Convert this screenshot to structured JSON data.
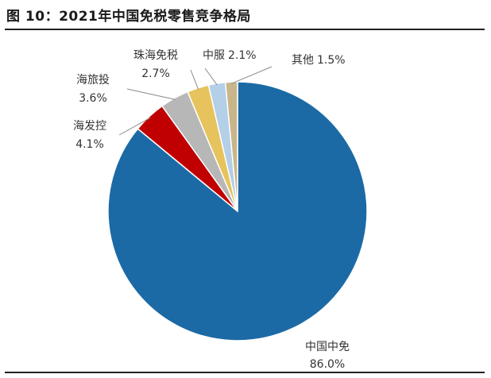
{
  "header": {
    "title": "图 10：2021年中国免税零售竞争格局"
  },
  "chart_data": {
    "type": "pie",
    "title": "2021年中国免税零售竞争格局",
    "start_angle_deg": 0,
    "direction": "clockwise",
    "slices": [
      {
        "name": "中国中免",
        "value": 86.0,
        "label": "86.0%",
        "color": "#1b6aa5"
      },
      {
        "name": "海发控",
        "value": 4.1,
        "label": "4.1%",
        "color": "#c00000"
      },
      {
        "name": "海旅投",
        "value": 3.6,
        "label": "3.6%",
        "color": "#b7b7b7"
      },
      {
        "name": "珠海免税",
        "value": 2.7,
        "label": "2.7%",
        "color": "#e6c35c"
      },
      {
        "name": "中服",
        "value": 2.1,
        "label": "2.1%",
        "color": "#b4cfe8"
      },
      {
        "name": "其他",
        "value": 1.5,
        "label": "1.5%",
        "color": "#c8b68a"
      }
    ]
  }
}
